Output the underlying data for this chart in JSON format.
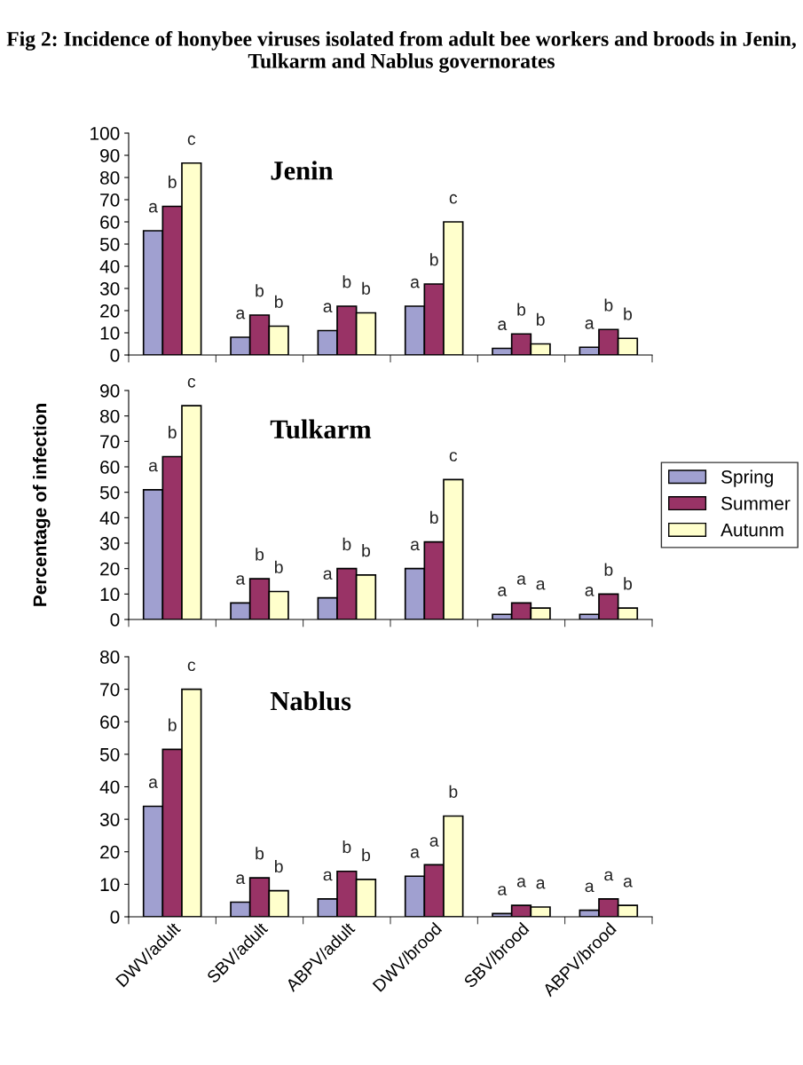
{
  "chart_data": [
    {
      "type": "bar",
      "title": "Jenin",
      "annotations": [
        "Fig 2: Incidence of honybee viruses isolated from adult bee workers and broods in Jenin, Tulkarm and Nablus governorates"
      ],
      "categories": [
        null,
        null,
        null,
        null,
        null,
        null
      ],
      "ylim": [
        0,
        100
      ],
      "yticks": [
        0,
        10,
        20,
        30,
        40,
        50,
        60,
        70,
        80,
        90,
        100
      ],
      "tick_labels": "y",
      "grid": false,
      "legend": false,
      "series": [
        {
          "color": "#a0a0d0",
          "values": [
            56,
            8,
            11,
            22,
            3,
            3.5
          ],
          "value_labels": [
            "a",
            "a",
            "a",
            "a",
            "a",
            "a"
          ]
        },
        {
          "color": "#993366",
          "values": [
            67,
            18,
            22,
            32,
            9.5,
            11.5
          ],
          "value_labels": [
            "b",
            "b",
            "b",
            "b",
            "b",
            "b"
          ]
        },
        {
          "color": "#ffffcc",
          "values": [
            86.5,
            13,
            19,
            60,
            5,
            7.5
          ],
          "value_labels": [
            "c",
            "b",
            "b",
            "c",
            "b",
            "b"
          ]
        }
      ]
    },
    {
      "type": "bar",
      "title": "Tulkarm",
      "ylabel": "Percentage of infection",
      "categories": [
        null,
        null,
        null,
        null,
        null,
        null
      ],
      "ylim": [
        0,
        90
      ],
      "yticks": [
        0,
        10,
        20,
        30,
        40,
        50,
        60,
        70,
        80,
        90
      ],
      "tick_labels": "y",
      "grid": false,
      "legend": "right",
      "series": [
        {
          "name": "Spring",
          "color": "#a0a0d0",
          "values": [
            51,
            6.5,
            8.5,
            20,
            2,
            2
          ],
          "value_labels": [
            "a",
            "a",
            "a",
            "a",
            "a",
            "a"
          ]
        },
        {
          "name": "Summer",
          "color": "#993366",
          "values": [
            64,
            16,
            20,
            30.5,
            6.5,
            10
          ],
          "value_labels": [
            "b",
            "b",
            "b",
            "b",
            "a",
            "b"
          ]
        },
        {
          "name": "Autunm",
          "color": "#ffffcc",
          "values": [
            84,
            11,
            17.5,
            55,
            4.5,
            4.5
          ],
          "value_labels": [
            "c",
            "b",
            "b",
            "c",
            "a",
            "b"
          ]
        }
      ]
    },
    {
      "type": "bar",
      "title": "Nablus",
      "categories": [
        "DWV/adult",
        "SBV/adult",
        "ABPV/adult",
        "DWV/brood",
        "SBV/brood",
        "ABPV/brood"
      ],
      "ylim": [
        0,
        80
      ],
      "yticks": [
        0,
        10,
        20,
        30,
        40,
        50,
        60,
        70,
        80
      ],
      "grid": false,
      "legend": false,
      "series": [
        {
          "color": "#a0a0d0",
          "values": [
            34,
            4.5,
            5.5,
            12.5,
            1,
            2
          ],
          "value_labels": [
            "a",
            "a",
            "a",
            "a",
            "a",
            "a"
          ]
        },
        {
          "color": "#993366",
          "values": [
            51.5,
            12,
            14,
            16,
            3.5,
            5.5
          ],
          "value_labels": [
            "b",
            "b",
            "b",
            "a",
            "a",
            "a"
          ]
        },
        {
          "color": "#ffffcc",
          "values": [
            70,
            8,
            11.5,
            31,
            3,
            3.5
          ],
          "value_labels": [
            "c",
            "b",
            "b",
            "b",
            "a",
            "a"
          ]
        }
      ]
    }
  ]
}
